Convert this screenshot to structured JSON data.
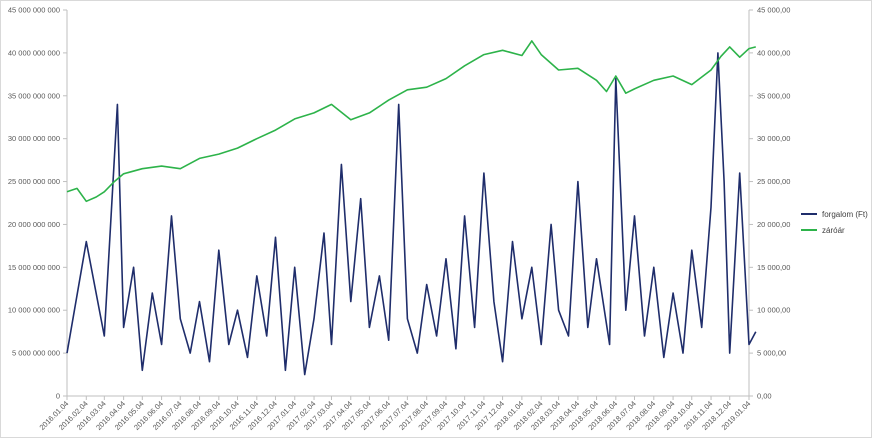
{
  "chart_data": {
    "type": "line",
    "title": "",
    "x_tick_labels": [
      "2016.01.04",
      "2016.02.04",
      "2016.03.04",
      "2016.04.04",
      "2016.05.04",
      "2016.06.04",
      "2016.07.04",
      "2016.08.04",
      "2016.09.04",
      "2016.10.04",
      "2016.11.04",
      "2016.12.04",
      "2017.01.04",
      "2017.02.04",
      "2017.03.04",
      "2017.04.04",
      "2017.05.04",
      "2017.06.04",
      "2017.07.04",
      "2017.08.04",
      "2017.09.04",
      "2017.10.04",
      "2017.11.04",
      "2017.12.04",
      "2018.01.04",
      "2018.02.04",
      "2018.03.04",
      "2018.04.04",
      "2018.05.04",
      "2018.06.04",
      "2018.07.04",
      "2018.08.04",
      "2018.09.04",
      "2018.10.04",
      "2018.11.04",
      "2018.12.04",
      "2019.01.04"
    ],
    "y_left": {
      "min": 0,
      "max": 45000000000,
      "tick_labels": [
        "0",
        "5 000 000 000",
        "10 000 000 000",
        "15 000 000 000",
        "20 000 000 000",
        "25 000 000 000",
        "30 000 000 000",
        "35 000 000 000",
        "40 000 000 000",
        "45 000 000 000"
      ]
    },
    "y_right": {
      "min": 0,
      "max": 45000,
      "tick_labels": [
        "0,00",
        "5 000,00",
        "10 000,00",
        "15 000,00",
        "20 000,00",
        "25 000,00",
        "30 000,00",
        "35 000,00",
        "40 000,00",
        "45 000,00"
      ]
    },
    "grid": false,
    "legend_position": "right",
    "series": [
      {
        "name": "forgalom (Ft)",
        "axis": "left",
        "color": "#1f2d6b",
        "x": [
          "2016.01.04",
          "2016.02.04",
          "2016.03.04",
          "2016.03.25",
          "2016.04.04",
          "2016.04.20",
          "2016.05.04",
          "2016.05.20",
          "2016.06.04",
          "2016.06.20",
          "2016.07.04",
          "2016.07.20",
          "2016.08.04",
          "2016.08.20",
          "2016.09.04",
          "2016.09.20",
          "2016.10.04",
          "2016.10.20",
          "2016.11.04",
          "2016.11.20",
          "2016.12.04",
          "2016.12.20",
          "2017.01.04",
          "2017.01.20",
          "2017.02.04",
          "2017.02.20",
          "2017.03.04",
          "2017.03.20",
          "2017.04.04",
          "2017.04.20",
          "2017.05.04",
          "2017.05.20",
          "2017.06.04",
          "2017.06.20",
          "2017.07.04",
          "2017.07.20",
          "2017.08.04",
          "2017.08.20",
          "2017.09.04",
          "2017.09.20",
          "2017.10.04",
          "2017.10.20",
          "2017.11.04",
          "2017.11.20",
          "2017.12.04",
          "2017.12.20",
          "2018.01.04",
          "2018.01.20",
          "2018.02.04",
          "2018.02.20",
          "2018.03.04",
          "2018.03.20",
          "2018.04.04",
          "2018.04.20",
          "2018.05.04",
          "2018.05.25",
          "2018.06.04",
          "2018.06.20",
          "2018.07.04",
          "2018.07.20",
          "2018.08.04",
          "2018.08.20",
          "2018.09.04",
          "2018.09.20",
          "2018.10.04",
          "2018.10.20",
          "2018.11.04",
          "2018.11.15",
          "2018.11.25",
          "2018.12.04",
          "2018.12.20",
          "2019.01.04",
          "2019.01.15"
        ],
        "values": [
          5000000000,
          18000000000,
          7000000000,
          34000000000,
          8000000000,
          15000000000,
          3000000000,
          12000000000,
          6000000000,
          21000000000,
          9000000000,
          5000000000,
          11000000000,
          4000000000,
          17000000000,
          6000000000,
          10000000000,
          4500000000,
          14000000000,
          7000000000,
          18500000000,
          3000000000,
          15000000000,
          2500000000,
          9000000000,
          19000000000,
          6000000000,
          27000000000,
          11000000000,
          23000000000,
          8000000000,
          14000000000,
          6500000000,
          34000000000,
          9000000000,
          5000000000,
          13000000000,
          7000000000,
          16000000000,
          5500000000,
          21000000000,
          8000000000,
          26000000000,
          11000000000,
          4000000000,
          18000000000,
          9000000000,
          15000000000,
          6000000000,
          20000000000,
          10000000000,
          7000000000,
          25000000000,
          8000000000,
          16000000000,
          6000000000,
          37000000000,
          10000000000,
          21000000000,
          7000000000,
          15000000000,
          4500000000,
          12000000000,
          5000000000,
          17000000000,
          8000000000,
          22000000000,
          40000000000,
          25000000000,
          5000000000,
          26000000000,
          6000000000,
          7500000000
        ]
      },
      {
        "name": "záróár",
        "axis": "right",
        "color": "#2db34a",
        "x": [
          "2016.01.04",
          "2016.01.20",
          "2016.02.04",
          "2016.02.20",
          "2016.03.04",
          "2016.03.20",
          "2016.04.04",
          "2016.05.04",
          "2016.06.04",
          "2016.07.04",
          "2016.08.04",
          "2016.09.04",
          "2016.10.04",
          "2016.11.04",
          "2016.12.04",
          "2017.01.04",
          "2017.02.04",
          "2017.03.04",
          "2017.04.04",
          "2017.05.04",
          "2017.06.04",
          "2017.07.04",
          "2017.08.04",
          "2017.09.04",
          "2017.10.04",
          "2017.11.04",
          "2017.12.04",
          "2018.01.04",
          "2018.01.20",
          "2018.02.04",
          "2018.03.04",
          "2018.04.04",
          "2018.05.04",
          "2018.05.20",
          "2018.06.04",
          "2018.06.20",
          "2018.07.04",
          "2018.08.04",
          "2018.09.04",
          "2018.10.04",
          "2018.11.04",
          "2018.11.20",
          "2018.12.04",
          "2018.12.20",
          "2019.01.04",
          "2019.01.15"
        ],
        "values": [
          23800,
          24200,
          22700,
          23200,
          23800,
          25000,
          25900,
          26500,
          26800,
          26500,
          27700,
          28200,
          28900,
          30000,
          31000,
          32300,
          33000,
          34000,
          32200,
          33000,
          34500,
          35700,
          36000,
          37000,
          38500,
          39800,
          40300,
          39700,
          41400,
          39800,
          38000,
          38200,
          36800,
          35500,
          37300,
          35300,
          35800,
          36800,
          37300,
          36300,
          38000,
          39600,
          40700,
          39500,
          40500,
          40700
        ]
      }
    ]
  }
}
